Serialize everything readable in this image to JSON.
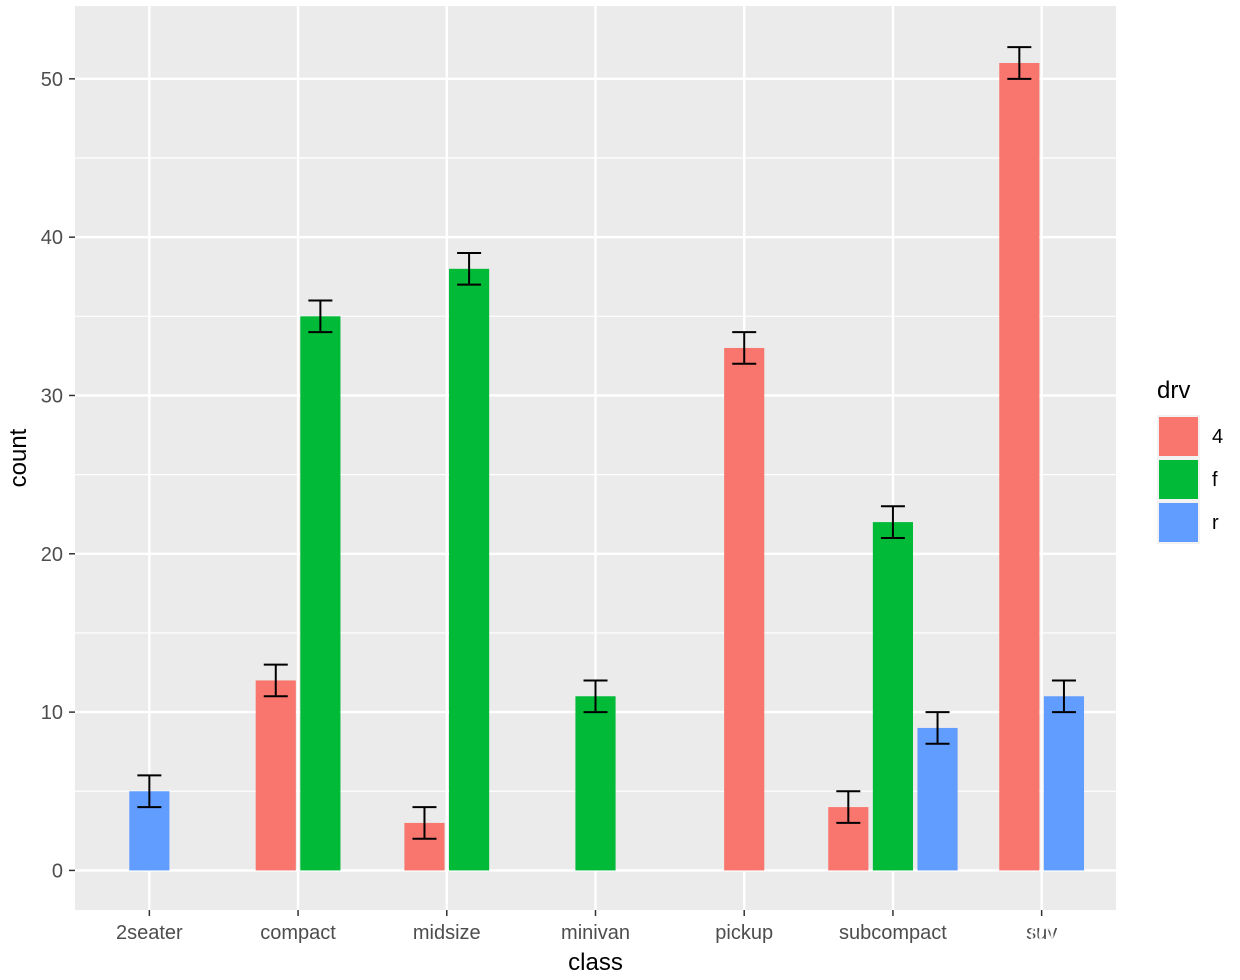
{
  "chart_data": {
    "type": "bar",
    "categories": [
      "2seater",
      "compact",
      "midsize",
      "minivan",
      "pickup",
      "subcompact",
      "suv"
    ],
    "series": [
      {
        "name": "4",
        "color": "#F8766D",
        "values": [
          null,
          12,
          3,
          null,
          33,
          4,
          51
        ],
        "error": [
          null,
          1,
          1,
          null,
          1,
          1,
          1
        ]
      },
      {
        "name": "f",
        "color": "#00BA38",
        "values": [
          null,
          35,
          38,
          11,
          null,
          22,
          null
        ],
        "error": [
          null,
          1,
          1,
          1,
          null,
          1,
          null
        ]
      },
      {
        "name": "r",
        "color": "#619CFF",
        "values": [
          5,
          null,
          null,
          null,
          null,
          9,
          11
        ],
        "error": [
          1,
          null,
          null,
          null,
          null,
          1,
          1
        ]
      }
    ],
    "xlabel": "class",
    "ylabel": "count",
    "ylim": [
      -2.5,
      54.6
    ],
    "yticks": [
      0,
      10,
      20,
      30,
      40,
      50
    ],
    "grid": true,
    "legend": {
      "title": "drv",
      "position": "right"
    },
    "panel_color": "#EBEBEB"
  },
  "watermark": "知乎 @名本无名"
}
